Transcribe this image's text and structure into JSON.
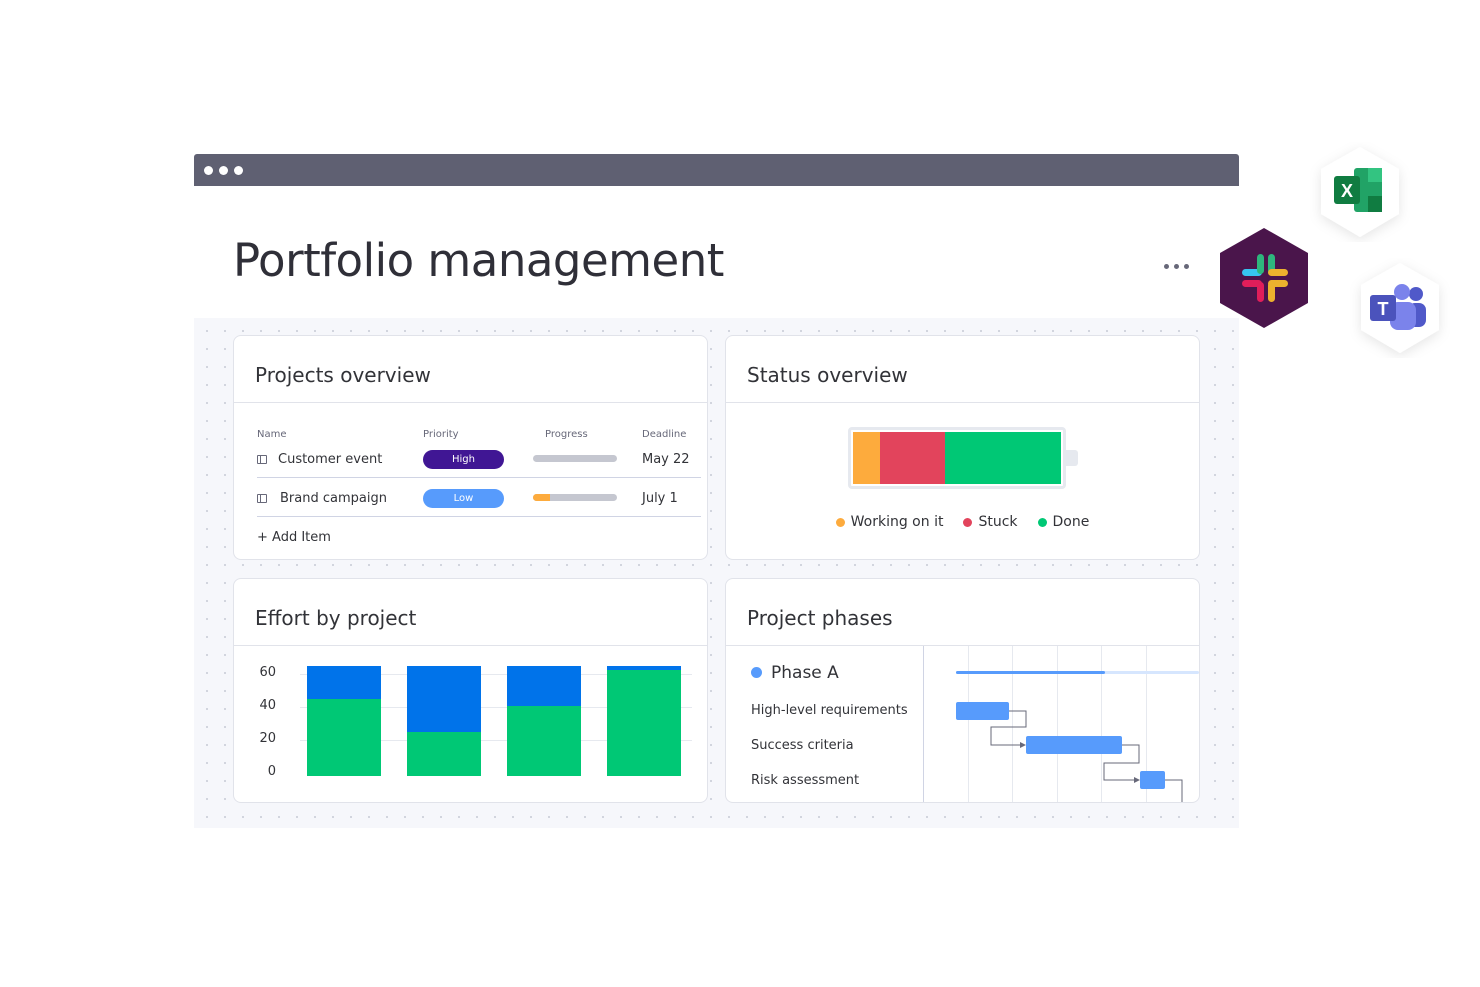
{
  "page": {
    "title": "Portfolio management"
  },
  "colors": {
    "working": "#fdab3d",
    "stuck": "#e2445c",
    "done": "#00c875",
    "high": "#401694",
    "low": "#579bfc",
    "effort_blue": "#0073ea",
    "effort_green": "#00c875"
  },
  "projects_overview": {
    "title": "Projects overview",
    "columns": {
      "name": "Name",
      "priority": "Priority",
      "progress": "Progress",
      "deadline": "Deadline"
    },
    "rows": [
      {
        "name": "Customer event",
        "priority": "High",
        "progress": 0,
        "deadline": "May 22"
      },
      {
        "name": "Brand campaign",
        "priority": "Low",
        "progress": 0.2,
        "deadline": "July 1"
      }
    ],
    "add_item": "+ Add Item"
  },
  "status_overview": {
    "title": "Status overview",
    "segments": [
      {
        "label": "Working on it",
        "fraction": 0.13,
        "color_key": "working"
      },
      {
        "label": "Stuck",
        "fraction": 0.31,
        "color_key": "stuck"
      },
      {
        "label": "Done",
        "fraction": 0.56,
        "color_key": "done"
      }
    ],
    "legend": [
      "Working on it",
      "Stuck",
      "Done"
    ]
  },
  "effort_by_project": {
    "title": "Effort by project",
    "chart_data": {
      "type": "bar",
      "stacked": true,
      "categories": [
        "",
        "",
        "",
        ""
      ],
      "series": [
        {
          "color": "#00c875",
          "values": [
            42,
            24,
            38,
            58
          ]
        },
        {
          "color": "#0073ea",
          "values": [
            18,
            36,
            22,
            2
          ]
        }
      ],
      "yticks": [
        "60",
        "40",
        "20",
        "0"
      ],
      "ylim": [
        0,
        60
      ],
      "grid": true
    }
  },
  "project_phases": {
    "title": "Project phases",
    "phase": "Phase A",
    "tasks": [
      "High-level requirements",
      "Success criteria",
      "Risk assessment"
    ]
  },
  "integrations": [
    "excel-icon",
    "slack-icon",
    "teams-icon"
  ]
}
